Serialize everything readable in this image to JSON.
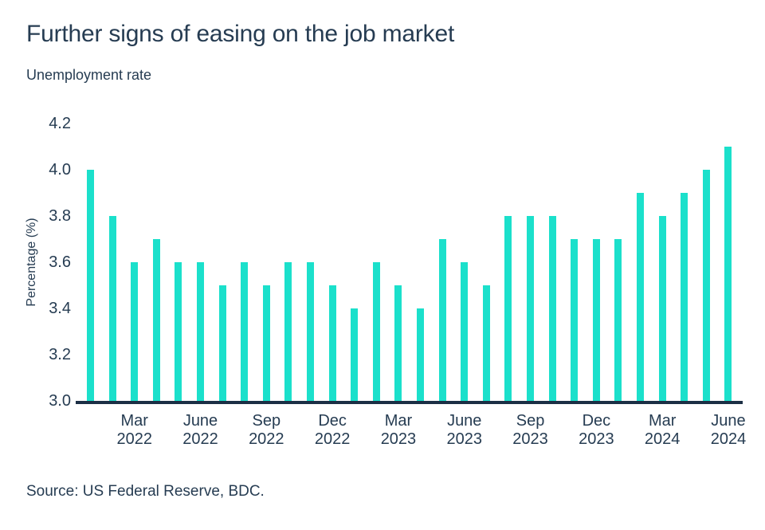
{
  "header": {
    "title": "Further signs of easing on the job market",
    "subtitle": "Unemployment rate"
  },
  "footer": {
    "source": "Source: US Federal Reserve, BDC."
  },
  "chart_data": {
    "type": "bar",
    "title": "Further signs of easing on the job market",
    "subtitle": "Unemployment rate",
    "xlabel": "",
    "ylabel": "Percentage (%)",
    "ylim": [
      3.0,
      4.2
    ],
    "yticks": [
      3.0,
      3.2,
      3.4,
      3.6,
      3.8,
      4.0,
      4.2
    ],
    "grid": false,
    "legend": false,
    "x": [
      "Jan 2022",
      "Feb 2022",
      "Mar 2022",
      "Apr 2022",
      "May 2022",
      "June 2022",
      "July 2022",
      "Aug 2022",
      "Sep 2022",
      "Oct 2022",
      "Nov 2022",
      "Dec 2022",
      "Jan 2023",
      "Feb 2023",
      "Mar 2023",
      "Apr 2023",
      "May 2023",
      "June 2023",
      "July 2023",
      "Aug 2023",
      "Sep 2023",
      "Oct 2023",
      "Nov 2023",
      "Dec 2023",
      "Jan 2024",
      "Feb 2024",
      "Mar 2024",
      "Apr 2024",
      "May 2024",
      "June 2024"
    ],
    "values": [
      4.0,
      3.8,
      3.6,
      3.7,
      3.6,
      3.6,
      3.5,
      3.6,
      3.5,
      3.6,
      3.6,
      3.5,
      3.4,
      3.6,
      3.5,
      3.4,
      3.7,
      3.6,
      3.5,
      3.8,
      3.8,
      3.8,
      3.7,
      3.7,
      3.7,
      3.9,
      3.8,
      3.9,
      4.0,
      4.1
    ],
    "x_tick_labels": [
      {
        "month": "Mar",
        "year": "2022",
        "index": 2
      },
      {
        "month": "June",
        "year": "2022",
        "index": 5
      },
      {
        "month": "Sep",
        "year": "2022",
        "index": 8
      },
      {
        "month": "Dec",
        "year": "2022",
        "index": 11
      },
      {
        "month": "Mar",
        "year": "2023",
        "index": 14
      },
      {
        "month": "June",
        "year": "2023",
        "index": 17
      },
      {
        "month": "Sep",
        "year": "2023",
        "index": 20
      },
      {
        "month": "Dec",
        "year": "2023",
        "index": 23
      },
      {
        "month": "Mar",
        "year": "2024",
        "index": 26
      },
      {
        "month": "June",
        "year": "2024",
        "index": 29
      }
    ],
    "colors": {
      "bar": "#1BE0CB",
      "axis_line": "#1C2F45",
      "text": "#263C52"
    }
  }
}
